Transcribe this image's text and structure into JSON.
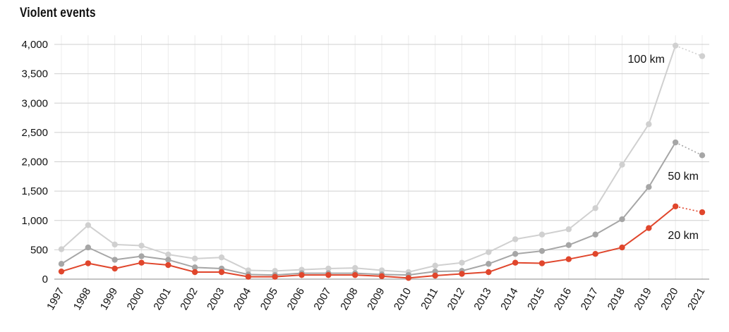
{
  "title": "Violent events",
  "chart_data": {
    "type": "line",
    "title": "Violent events",
    "xlabel": "",
    "ylabel": "",
    "x": [
      "1997",
      "1998",
      "1999",
      "2000",
      "2001",
      "2002",
      "2003",
      "2004",
      "2005",
      "2006",
      "2007",
      "2008",
      "2009",
      "2010",
      "2011",
      "2012",
      "2013",
      "2014",
      "2015",
      "2016",
      "2017",
      "2018",
      "2019",
      "2020",
      "2021"
    ],
    "ylim": [
      0,
      4000
    ],
    "yticks": [
      0,
      500,
      1000,
      1500,
      2000,
      2500,
      3000,
      3500,
      4000
    ],
    "ytick_labels": [
      "0",
      "500",
      "1,000",
      "1,500",
      "2,000",
      "2,500",
      "3,000",
      "3,500",
      "4,000"
    ],
    "grid": true,
    "series": [
      {
        "name": "100 km",
        "color": "#d0d0d0",
        "values": [
          510,
          920,
          590,
          570,
          420,
          350,
          370,
          150,
          140,
          160,
          180,
          190,
          150,
          120,
          230,
          280,
          460,
          680,
          760,
          850,
          1210,
          1950,
          2640,
          3980,
          3800
        ]
      },
      {
        "name": "50 km",
        "color": "#a6a6a6",
        "values": [
          260,
          540,
          330,
          390,
          330,
          200,
          180,
          80,
          70,
          100,
          100,
          100,
          80,
          70,
          130,
          140,
          260,
          430,
          480,
          580,
          760,
          1020,
          1570,
          2330,
          2110
        ]
      },
      {
        "name": "20 km",
        "color": "#e0462c",
        "values": [
          130,
          270,
          180,
          280,
          240,
          120,
          120,
          40,
          40,
          70,
          70,
          70,
          50,
          20,
          60,
          90,
          120,
          280,
          270,
          340,
          430,
          540,
          870,
          1240,
          1140
        ]
      }
    ],
    "last_segment_style": "dotted"
  }
}
